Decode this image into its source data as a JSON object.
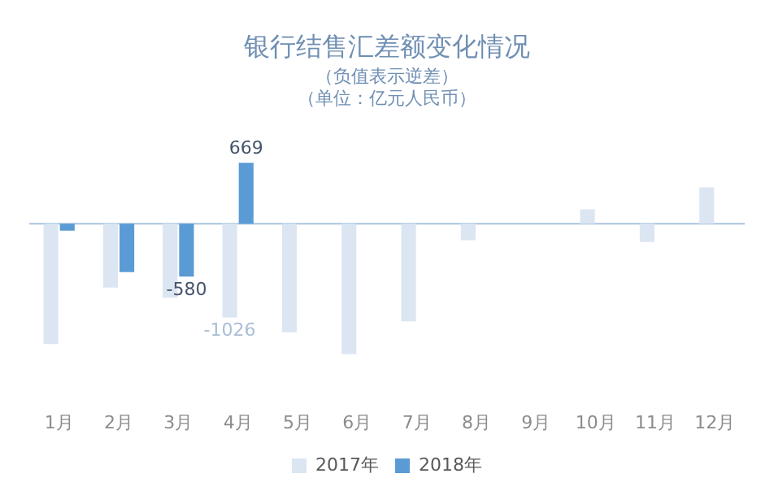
{
  "chart_data": {
    "type": "bar",
    "title": "银行结售汇差额变化情况",
    "subtitle": "（负值表示逆差）",
    "annotations": [
      "（单位：亿元人民币）"
    ],
    "categories": [
      "1月",
      "2月",
      "3月",
      "4月",
      "5月",
      "6月",
      "7月",
      "8月",
      "9月",
      "10月",
      "11月",
      "12月"
    ],
    "series": [
      {
        "name": "2017年",
        "color": "#dce6f2",
        "values": [
          -1320,
          -700,
          -810,
          -1026,
          -1190,
          -1430,
          -1070,
          -180,
          null,
          160,
          -200,
          400
        ],
        "value_labels": [
          null,
          null,
          null,
          "-1026",
          null,
          null,
          null,
          null,
          null,
          null,
          null,
          null
        ]
      },
      {
        "name": "2018年",
        "color": "#5b9bd5",
        "values": [
          -75,
          -530,
          -580,
          669,
          null,
          null,
          null,
          null,
          null,
          null,
          null,
          null
        ],
        "value_labels": [
          null,
          null,
          "-580",
          "669",
          null,
          null,
          null,
          null,
          null,
          null,
          null,
          null
        ]
      }
    ],
    "ref_lines": [
      {
        "axis": "y",
        "value": 0,
        "color": "#a9c4e0"
      }
    ],
    "legend": "bottom",
    "grid": false
  }
}
